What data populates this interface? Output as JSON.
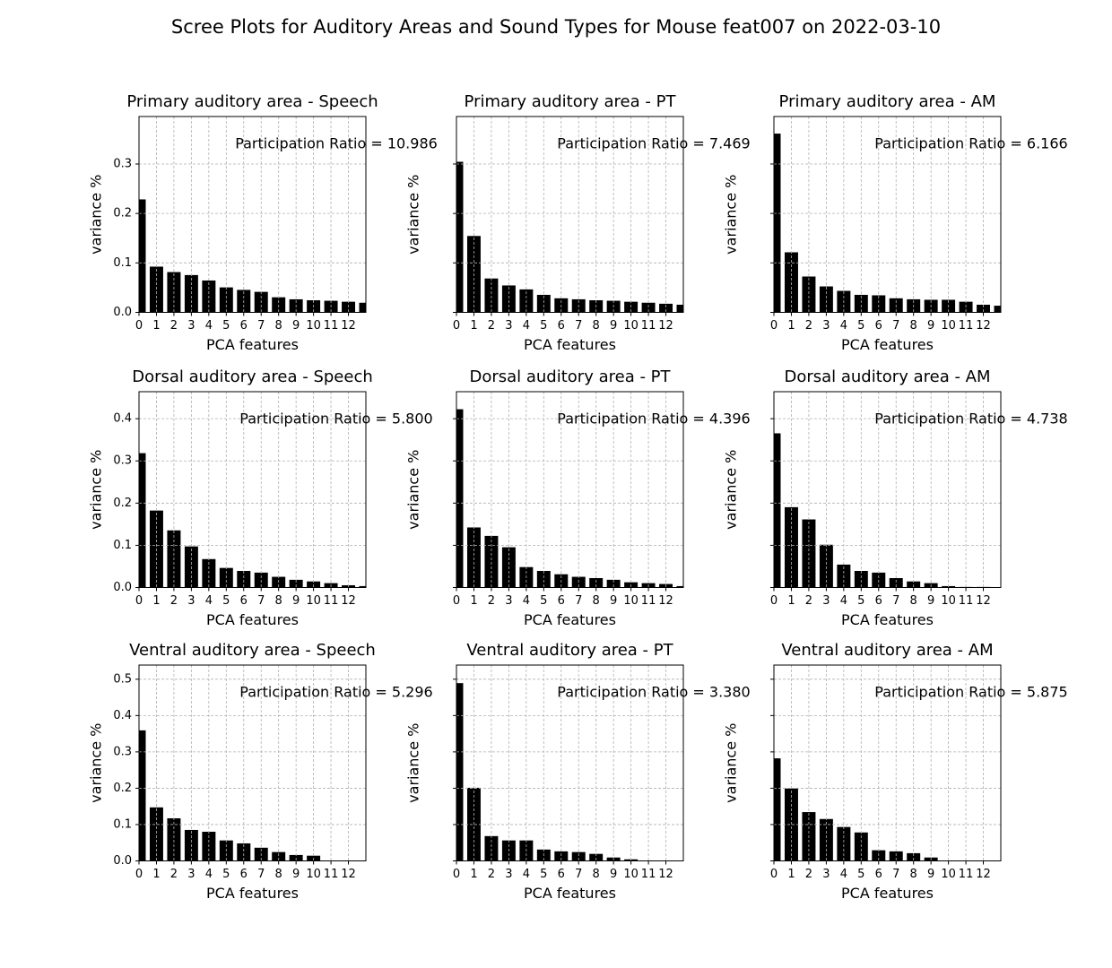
{
  "title": "Scree Plots for Auditory Areas and Sound Types for Mouse feat007 on 2022-03-10",
  "chart_data": [
    {
      "type": "bar",
      "title": "Primary auditory area - Speech",
      "xlabel": "PCA features",
      "ylabel": "variance %",
      "annotation": "Participation Ratio = 10.986",
      "color": "#000000",
      "grid": true,
      "x": [
        0,
        1,
        2,
        3,
        4,
        5,
        6,
        7,
        8,
        9,
        10,
        11,
        12,
        13
      ],
      "values": [
        0.229,
        0.093,
        0.082,
        0.076,
        0.065,
        0.051,
        0.046,
        0.042,
        0.031,
        0.027,
        0.025,
        0.024,
        0.022,
        0.02
      ],
      "xlim": [
        0,
        13
      ],
      "xticks": [
        0,
        1,
        2,
        3,
        4,
        5,
        6,
        7,
        8,
        9,
        10,
        11,
        12
      ],
      "ylim": [
        0,
        0.396
      ],
      "yticks": [
        {
          "value": 0,
          "label": "0.0"
        },
        0.1,
        0.2,
        0.3
      ]
    },
    {
      "type": "bar",
      "title": "Primary auditory area - PT",
      "xlabel": "PCA features",
      "ylabel": "variance %",
      "annotation": "Participation Ratio = 7.469",
      "color": "#000000",
      "grid": true,
      "ytick_labels": false,
      "x": [
        0,
        1,
        2,
        3,
        4,
        5,
        6,
        7,
        8,
        9,
        10,
        11,
        12,
        13
      ],
      "values": [
        0.305,
        0.155,
        0.069,
        0.055,
        0.047,
        0.036,
        0.029,
        0.027,
        0.025,
        0.024,
        0.022,
        0.02,
        0.018,
        0.016
      ],
      "xlim": [
        0,
        13
      ],
      "xticks": [
        0,
        1,
        2,
        3,
        4,
        5,
        6,
        7,
        8,
        9,
        10,
        11,
        12
      ],
      "ylim": [
        0,
        0.396
      ],
      "yticks": [
        0,
        0.1,
        0.2,
        0.3
      ]
    },
    {
      "type": "bar",
      "title": "Primary auditory area - AM",
      "xlabel": "PCA features",
      "ylabel": "variance %",
      "annotation": "Participation Ratio = 6.166",
      "color": "#000000",
      "grid": true,
      "ytick_labels": false,
      "x": [
        0,
        1,
        2,
        3,
        4,
        5,
        6,
        7,
        8,
        9,
        10,
        11,
        12,
        13
      ],
      "values": [
        0.362,
        0.122,
        0.073,
        0.053,
        0.044,
        0.036,
        0.035,
        0.029,
        0.027,
        0.026,
        0.026,
        0.022,
        0.016,
        0.014
      ],
      "xlim": [
        0,
        13
      ],
      "xticks": [
        0,
        1,
        2,
        3,
        4,
        5,
        6,
        7,
        8,
        9,
        10,
        11,
        12
      ],
      "ylim": [
        0,
        0.396
      ],
      "yticks": [
        0,
        0.1,
        0.2,
        0.3
      ]
    },
    {
      "type": "bar",
      "title": "Dorsal auditory area - Speech",
      "xlabel": "PCA features",
      "ylabel": "variance %",
      "annotation": "Participation Ratio = 5.800",
      "color": "#000000",
      "grid": true,
      "x": [
        0,
        1,
        2,
        3,
        4,
        5,
        6,
        7,
        8,
        9,
        10,
        11,
        12,
        13
      ],
      "values": [
        0.319,
        0.183,
        0.136,
        0.098,
        0.068,
        0.047,
        0.04,
        0.036,
        0.026,
        0.019,
        0.015,
        0.011,
        0.006,
        0.004
      ],
      "xlim": [
        0,
        13
      ],
      "xticks": [
        0,
        1,
        2,
        3,
        4,
        5,
        6,
        7,
        8,
        9,
        10,
        11,
        12
      ],
      "ylim": [
        0,
        0.464
      ],
      "yticks": [
        {
          "value": 0,
          "label": "0.0"
        },
        0.1,
        0.2,
        0.3,
        0.4
      ]
    },
    {
      "type": "bar",
      "title": "Dorsal auditory area - PT",
      "xlabel": "PCA features",
      "ylabel": "variance %",
      "annotation": "Participation Ratio = 4.396",
      "color": "#000000",
      "grid": true,
      "ytick_labels": false,
      "x": [
        0,
        1,
        2,
        3,
        4,
        5,
        6,
        7,
        8,
        9,
        10,
        11,
        12,
        13
      ],
      "values": [
        0.423,
        0.143,
        0.123,
        0.096,
        0.049,
        0.04,
        0.032,
        0.026,
        0.023,
        0.019,
        0.013,
        0.011,
        0.009,
        0.004
      ],
      "xlim": [
        0,
        13
      ],
      "xticks": [
        0,
        1,
        2,
        3,
        4,
        5,
        6,
        7,
        8,
        9,
        10,
        11,
        12
      ],
      "ylim": [
        0,
        0.464
      ],
      "yticks": [
        0,
        0.1,
        0.2,
        0.3,
        0.4
      ]
    },
    {
      "type": "bar",
      "title": "Dorsal auditory area - AM",
      "xlabel": "PCA features",
      "ylabel": "variance %",
      "annotation": "Participation Ratio = 4.738",
      "color": "#000000",
      "grid": true,
      "ytick_labels": false,
      "x": [
        0,
        1,
        2,
        3,
        4,
        5,
        6,
        7,
        8,
        9,
        10,
        11,
        12
      ],
      "values": [
        0.366,
        0.191,
        0.162,
        0.102,
        0.055,
        0.04,
        0.036,
        0.023,
        0.015,
        0.011,
        0.004,
        0.002,
        0.002
      ],
      "xlim": [
        0,
        13
      ],
      "xticks": [
        0,
        1,
        2,
        3,
        4,
        5,
        6,
        7,
        8,
        9,
        10,
        11,
        12
      ],
      "ylim": [
        0,
        0.464
      ],
      "yticks": [
        0,
        0.1,
        0.2,
        0.3,
        0.4
      ]
    },
    {
      "type": "bar",
      "title": "Ventral auditory area - Speech",
      "xlabel": "PCA features",
      "ylabel": "variance %",
      "annotation": "Participation Ratio = 5.296",
      "color": "#000000",
      "grid": true,
      "x": [
        0,
        1,
        2,
        3,
        4,
        5,
        6,
        7,
        8,
        9,
        10
      ],
      "values": [
        0.36,
        0.148,
        0.118,
        0.086,
        0.081,
        0.057,
        0.049,
        0.037,
        0.025,
        0.017,
        0.015
      ],
      "xlim": [
        0,
        13
      ],
      "xticks": [
        0,
        1,
        2,
        3,
        4,
        5,
        6,
        7,
        8,
        9,
        10,
        11,
        12
      ],
      "ylim": [
        0,
        0.539
      ],
      "yticks": [
        {
          "value": 0,
          "label": "0.0"
        },
        0.1,
        0.2,
        0.3,
        0.4,
        0.5
      ]
    },
    {
      "type": "bar",
      "title": "Ventral auditory area - PT",
      "xlabel": "PCA features",
      "ylabel": "variance %",
      "annotation": "Participation Ratio = 3.380",
      "color": "#000000",
      "grid": true,
      "ytick_labels": false,
      "x": [
        0,
        1,
        2,
        3,
        4,
        5,
        6,
        7,
        8,
        9,
        10
      ],
      "values": [
        0.49,
        0.202,
        0.069,
        0.057,
        0.057,
        0.032,
        0.027,
        0.025,
        0.02,
        0.01,
        0.005
      ],
      "xlim": [
        0,
        13
      ],
      "xticks": [
        0,
        1,
        2,
        3,
        4,
        5,
        6,
        7,
        8,
        9,
        10,
        11,
        12
      ],
      "ylim": [
        0,
        0.539
      ],
      "yticks": [
        0,
        0.1,
        0.2,
        0.3,
        0.4,
        0.5
      ]
    },
    {
      "type": "bar",
      "title": "Ventral auditory area - AM",
      "xlabel": "PCA features",
      "ylabel": "variance %",
      "annotation": "Participation Ratio = 5.875",
      "color": "#000000",
      "grid": true,
      "ytick_labels": false,
      "x": [
        0,
        1,
        2,
        3,
        4,
        5,
        6,
        7,
        8,
        9
      ],
      "values": [
        0.283,
        0.2,
        0.135,
        0.116,
        0.094,
        0.079,
        0.03,
        0.027,
        0.022,
        0.01
      ],
      "xlim": [
        0,
        13
      ],
      "xticks": [
        0,
        1,
        2,
        3,
        4,
        5,
        6,
        7,
        8,
        9,
        10,
        11,
        12
      ],
      "ylim": [
        0,
        0.539
      ],
      "yticks": [
        0,
        0.1,
        0.2,
        0.3,
        0.4,
        0.5
      ]
    }
  ]
}
